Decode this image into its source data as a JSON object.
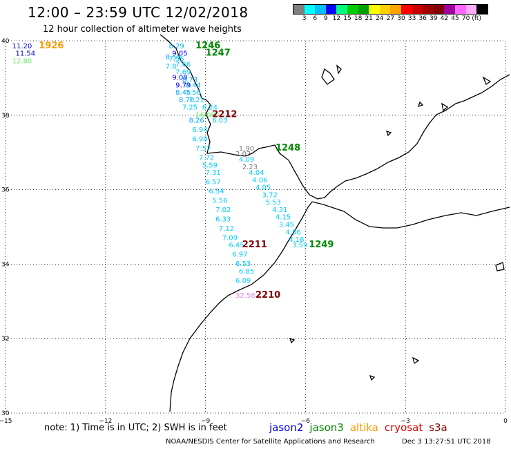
{
  "header": {
    "title": "12:00 – 23:59 UTC 12/02/2018",
    "subtitle": "12 hour collection of altimeter wave heights"
  },
  "colorbar": {
    "colors": [
      "#7f7f7f",
      "#00ffff",
      "#00bfff",
      "#0000ff",
      "#00ff7f",
      "#00cc00",
      "#00a000",
      "#ffff00",
      "#ffd000",
      "#ffa500",
      "#ff0000",
      "#cc0000",
      "#a00000",
      "#800000",
      "#a000a0",
      "#ff66ff",
      "#ffaaff",
      "#000000"
    ],
    "labels": [
      "3",
      "6",
      "9",
      "12",
      "15",
      "18",
      "21",
      "24",
      "27",
      "30",
      "33",
      "36",
      "39",
      "42",
      "45",
      "70",
      "(ft)"
    ]
  },
  "axes": {
    "x_ticks": [
      "−15",
      "−12",
      "−9",
      "−6",
      "−3",
      "0"
    ],
    "y_ticks": [
      "40",
      "38",
      "36",
      "34",
      "32",
      "30"
    ]
  },
  "map_data": {
    "lon_range": [
      -15,
      0
    ],
    "lat_range": [
      30,
      40
    ],
    "pass_labels": [
      {
        "text": "1926",
        "color": "#ff9900",
        "lon": -14.0,
        "lat": 39.8
      },
      {
        "text": "1246",
        "color": "#008800",
        "lon": -9.3,
        "lat": 39.8
      },
      {
        "text": "1247",
        "color": "#008800",
        "lon": -9.0,
        "lat": 39.6
      },
      {
        "text": "2212",
        "color": "#800000",
        "lon": -8.8,
        "lat": 37.95
      },
      {
        "text": "1248",
        "color": "#008800",
        "lon": -6.9,
        "lat": 37.05
      },
      {
        "text": "2211",
        "color": "#800000",
        "lon": -7.9,
        "lat": 34.45
      },
      {
        "text": "1249",
        "color": "#008800",
        "lon": -5.9,
        "lat": 34.45
      },
      {
        "text": "2210",
        "color": "#800000",
        "lon": -7.5,
        "lat": 33.1
      }
    ],
    "swh_points": [
      {
        "v": "11.20",
        "color": "#0000cc",
        "lon": -14.8,
        "lat": 39.8
      },
      {
        "v": "11.54",
        "color": "#0000cc",
        "lon": -14.7,
        "lat": 39.6
      },
      {
        "v": "12.80",
        "color": "#66ee66",
        "lon": -14.8,
        "lat": 39.4
      },
      {
        "v": "8.29",
        "color": "#00aaff",
        "lon": -10.1,
        "lat": 39.8
      },
      {
        "v": "9.05",
        "color": "#0000ff",
        "lon": -10.0,
        "lat": 39.6
      },
      {
        "v": "8.57",
        "color": "#00aaff",
        "lon": -10.2,
        "lat": 39.5
      },
      {
        "v": "7.55",
        "color": "#00ccff",
        "lon": -10.1,
        "lat": 39.45
      },
      {
        "v": "7.66",
        "color": "#00ccff",
        "lon": -9.9,
        "lat": 39.3
      },
      {
        "v": "7.8",
        "color": "#00ccff",
        "lon": -10.2,
        "lat": 39.25
      },
      {
        "v": "7.69",
        "color": "#00ccff",
        "lon": -9.9,
        "lat": 39.1
      },
      {
        "v": "9.08",
        "color": "#0000ff",
        "lon": -10.0,
        "lat": 38.95
      },
      {
        "v": "8.73",
        "color": "#00aaff",
        "lon": -9.7,
        "lat": 38.9
      },
      {
        "v": "9.79",
        "color": "#0000ff",
        "lon": -9.9,
        "lat": 38.75
      },
      {
        "v": "8.44",
        "color": "#00aaff",
        "lon": -9.6,
        "lat": 38.75
      },
      {
        "v": "8.45",
        "color": "#00aaff",
        "lon": -9.9,
        "lat": 38.55
      },
      {
        "v": "7.56",
        "color": "#00ccff",
        "lon": -9.6,
        "lat": 38.55
      },
      {
        "v": "8.70",
        "color": "#00aaff",
        "lon": -9.8,
        "lat": 38.35
      },
      {
        "v": "7.21",
        "color": "#00ccff",
        "lon": -9.5,
        "lat": 38.35
      },
      {
        "v": "7.25",
        "color": "#00ccff",
        "lon": -9.7,
        "lat": 38.15
      },
      {
        "v": "6.24",
        "color": "#00ccff",
        "lon": -9.1,
        "lat": 38.15
      },
      {
        "v": "16.08",
        "color": "#66ee66",
        "lon": -9.3,
        "lat": 37.95
      },
      {
        "v": "6.03",
        "color": "#00ccff",
        "lon": -8.8,
        "lat": 37.8
      },
      {
        "v": "8.26",
        "color": "#00aaff",
        "lon": -9.5,
        "lat": 37.8
      },
      {
        "v": "6.94",
        "color": "#00ccff",
        "lon": -9.4,
        "lat": 37.55
      },
      {
        "v": "6.99",
        "color": "#00ccff",
        "lon": -9.4,
        "lat": 37.3
      },
      {
        "v": "7.57",
        "color": "#00ccff",
        "lon": -9.3,
        "lat": 37.05
      },
      {
        "v": "1.90",
        "color": "#777777",
        "lon": -8.0,
        "lat": 37.05
      },
      {
        "v": "2.02",
        "color": "#777777",
        "lon": -8.1,
        "lat": 36.9
      },
      {
        "v": "7.72",
        "color": "#00ccff",
        "lon": -9.2,
        "lat": 36.8
      },
      {
        "v": "4.09",
        "color": "#00ccff",
        "lon": -8.0,
        "lat": 36.75
      },
      {
        "v": "5.59",
        "color": "#00ccff",
        "lon": -9.1,
        "lat": 36.6
      },
      {
        "v": "2.23",
        "color": "#777777",
        "lon": -7.9,
        "lat": 36.55
      },
      {
        "v": "7.31",
        "color": "#00ccff",
        "lon": -9.0,
        "lat": 36.4
      },
      {
        "v": "4.04",
        "color": "#00ccff",
        "lon": -7.7,
        "lat": 36.4
      },
      {
        "v": "6.57",
        "color": "#00ccff",
        "lon": -9.0,
        "lat": 36.15
      },
      {
        "v": "4.06",
        "color": "#00ccff",
        "lon": -7.6,
        "lat": 36.2
      },
      {
        "v": "6.54",
        "color": "#00ccff",
        "lon": -8.9,
        "lat": 35.9
      },
      {
        "v": "4.05",
        "color": "#00ccff",
        "lon": -7.5,
        "lat": 36.0
      },
      {
        "v": "3.72",
        "color": "#00ccff",
        "lon": -7.3,
        "lat": 35.8
      },
      {
        "v": "5.56",
        "color": "#00ccff",
        "lon": -8.8,
        "lat": 35.65
      },
      {
        "v": "5.53",
        "color": "#00ccff",
        "lon": -7.2,
        "lat": 35.6
      },
      {
        "v": "7.02",
        "color": "#00ccff",
        "lon": -8.7,
        "lat": 35.4
      },
      {
        "v": "4.31",
        "color": "#00ccff",
        "lon": -7.0,
        "lat": 35.4
      },
      {
        "v": "6.33",
        "color": "#00ccff",
        "lon": -8.7,
        "lat": 35.15
      },
      {
        "v": "4.15",
        "color": "#00ccff",
        "lon": -6.9,
        "lat": 35.2
      },
      {
        "v": "3.45",
        "color": "#00ccff",
        "lon": -6.8,
        "lat": 35.0
      },
      {
        "v": "7.12",
        "color": "#00ccff",
        "lon": -8.6,
        "lat": 34.9
      },
      {
        "v": "4.56",
        "color": "#00ccff",
        "lon": -6.6,
        "lat": 34.8
      },
      {
        "v": "7.09",
        "color": "#00ccff",
        "lon": -8.5,
        "lat": 34.65
      },
      {
        "v": "4.16",
        "color": "#00ccff",
        "lon": -6.5,
        "lat": 34.6
      },
      {
        "v": "6.45",
        "color": "#00ccff",
        "lon": -8.3,
        "lat": 34.45
      },
      {
        "v": "3.59",
        "color": "#00ccff",
        "lon": -6.4,
        "lat": 34.45
      },
      {
        "v": "6.97",
        "color": "#00ccff",
        "lon": -8.2,
        "lat": 34.2
      },
      {
        "v": "6.53",
        "color": "#00ccff",
        "lon": -8.1,
        "lat": 33.95
      },
      {
        "v": "6.85",
        "color": "#00ccff",
        "lon": -8.0,
        "lat": 33.75
      },
      {
        "v": "6.09",
        "color": "#00ccff",
        "lon": -8.1,
        "lat": 33.5
      },
      {
        "v": "32.58",
        "color": "#ee88ee",
        "lon": -8.1,
        "lat": 33.1
      }
    ]
  },
  "note": "note:  1) Time is in UTC;  2) SWH is in feet",
  "satellites": [
    {
      "name": "jason2",
      "color": "#0000dd"
    },
    {
      "name": "jason3",
      "color": "#008800"
    },
    {
      "name": "altika",
      "color": "#ff9900"
    },
    {
      "name": "cryosat",
      "color": "#dd0000"
    },
    {
      "name": "s3a",
      "color": "#800000"
    }
  ],
  "footer": {
    "credit": "NOAA/NESDIS Center for Satellite Applications and Research",
    "timestamp": "Dec  3 13:27:51 UTC 2018"
  }
}
